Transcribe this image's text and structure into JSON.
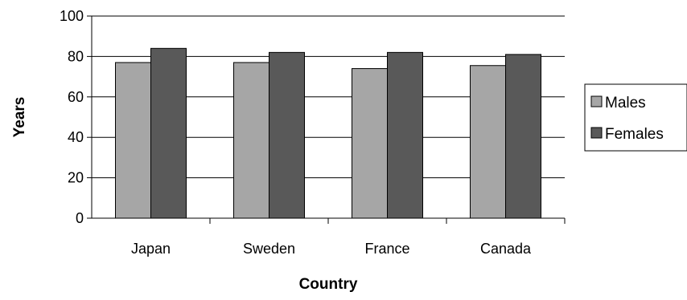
{
  "chart_data": {
    "type": "bar",
    "title": "",
    "xlabel": "Country",
    "ylabel": "Years",
    "categories": [
      "Japan",
      "Sweden",
      "France",
      "Canada"
    ],
    "series": [
      {
        "name": "Males",
        "values": [
          77,
          77,
          74,
          75.5
        ],
        "color": "#a6a6a6"
      },
      {
        "name": "Females",
        "values": [
          84,
          82,
          82,
          81
        ],
        "color": "#595959"
      }
    ],
    "ylim": [
      0,
      100
    ],
    "yticks": [
      0,
      20,
      40,
      60,
      80,
      100
    ],
    "grid": true,
    "legend_position": "right"
  }
}
